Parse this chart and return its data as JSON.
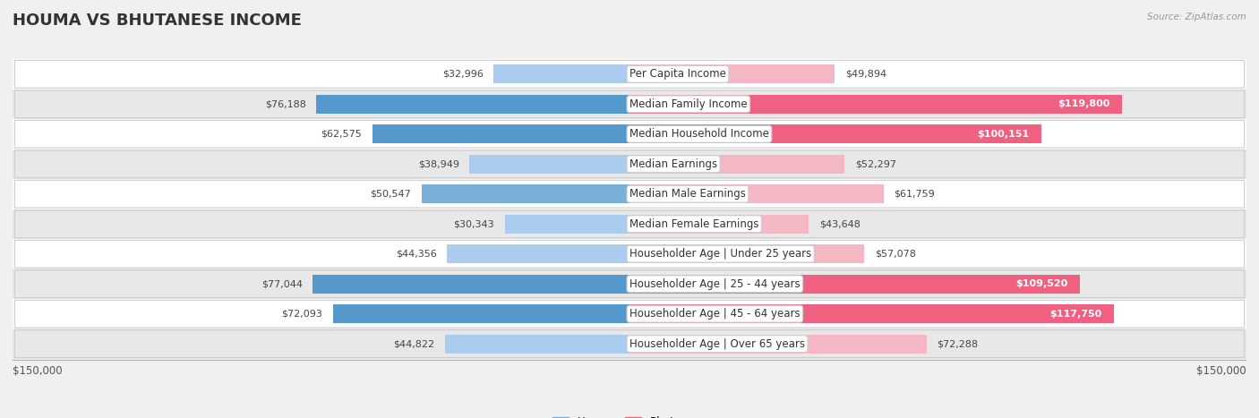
{
  "title": "HOUMA VS BHUTANESE INCOME",
  "source": "Source: ZipAtlas.com",
  "categories": [
    "Per Capita Income",
    "Median Family Income",
    "Median Household Income",
    "Median Earnings",
    "Median Male Earnings",
    "Median Female Earnings",
    "Householder Age | Under 25 years",
    "Householder Age | 25 - 44 years",
    "Householder Age | 45 - 64 years",
    "Householder Age | Over 65 years"
  ],
  "houma_values": [
    32996,
    76188,
    62575,
    38949,
    50547,
    30343,
    44356,
    77044,
    72093,
    44822
  ],
  "bhutanese_values": [
    49894,
    119800,
    100151,
    52297,
    61759,
    43648,
    57078,
    109520,
    117750,
    72288
  ],
  "houma_colors": [
    "#aaccee",
    "#5599cc",
    "#5599cc",
    "#aaccee",
    "#7ab0d8",
    "#aaccee",
    "#aaccee",
    "#5599cc",
    "#5599cc",
    "#aaccee"
  ],
  "bhutanese_colors": [
    "#f4b8c4",
    "#f06080",
    "#f06080",
    "#f4b8c4",
    "#f4b8c4",
    "#f4b8c4",
    "#f4b8c4",
    "#f06080",
    "#f06080",
    "#f4b8c4"
  ],
  "bg_color": "#f0f0f0",
  "row_colors": [
    "#ffffff",
    "#e8e8e8",
    "#ffffff",
    "#e8e8e8",
    "#ffffff",
    "#e8e8e8",
    "#ffffff",
    "#e8e8e8",
    "#ffffff",
    "#e8e8e8"
  ],
  "max_value": 150000,
  "xlabel_left": "$150,000",
  "xlabel_right": "$150,000",
  "legend_houma": "Houma",
  "legend_bhutanese": "Bhutanese",
  "title_fontsize": 13,
  "label_fontsize": 8.5,
  "value_fontsize": 8,
  "tick_fontsize": 8.5,
  "bhutanese_inside_threshold": 90000,
  "houma_inside_threshold": 999999
}
